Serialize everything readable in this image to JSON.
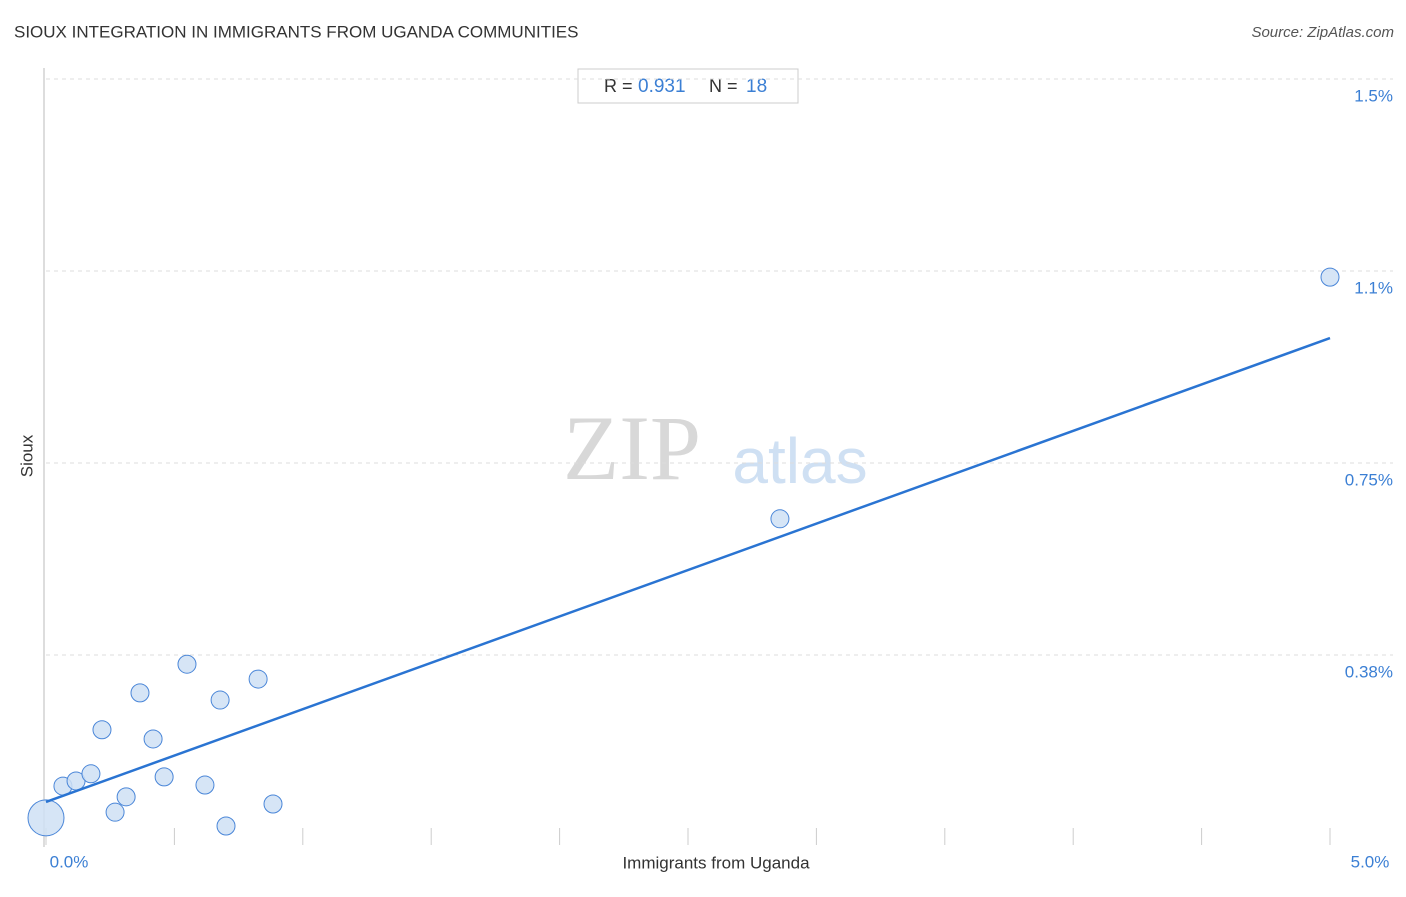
{
  "chart_data": {
    "type": "scatter",
    "title": "SIOUX INTEGRATION IN IMMIGRANTS FROM UGANDA COMMUNITIES",
    "source": "Source: ZipAtlas.com",
    "x_label": "Immigrants from Uganda",
    "y_label": "Sioux",
    "watermark": [
      "ZIP",
      "atlas"
    ],
    "stats": {
      "r_label": "R =",
      "r": 0.931,
      "n_label": "N =",
      "n": 18
    },
    "color": "#4a86d8",
    "x": [
      0,
      0.066,
      0.117,
      0.175,
      0.218,
      0.269,
      0.312,
      0.366,
      0.417,
      0.46,
      0.549,
      0.619,
      0.678,
      0.701,
      0.826,
      0.884,
      2.858,
      5.0
    ],
    "values": [
      0.057,
      0.119,
      0.129,
      0.143,
      0.229,
      0.068,
      0.098,
      0.301,
      0.211,
      0.137,
      0.357,
      0.121,
      0.287,
      0.041,
      0.328,
      0.084,
      0.641,
      1.113
    ],
    "sizes": [
      4,
      1,
      1,
      1,
      1,
      1,
      1,
      1,
      1,
      1,
      1,
      1,
      1,
      1,
      1,
      1,
      1,
      1
    ],
    "trendline": {
      "x": [
        0,
        5
      ],
      "y": [
        0.088,
        0.994
      ],
      "color": "#2a74d2"
    },
    "xlim": [
      0,
      5
    ],
    "ylim": [
      0,
      1.5
    ],
    "xticks": [
      {
        "value": 0,
        "label": "0.0%"
      },
      {
        "value": 5,
        "label": "5.0%"
      }
    ],
    "xminor": [
      0.5,
      1,
      1.5,
      2,
      2.5,
      3,
      3.5,
      4,
      4.5
    ],
    "yticks": [
      {
        "value": 0.375,
        "label": "0.38%"
      },
      {
        "value": 0.75,
        "label": "0.75%"
      },
      {
        "value": 1.125,
        "label": "1.1%"
      },
      {
        "value": 1.5,
        "label": "1.5%"
      }
    ],
    "grid": true
  }
}
